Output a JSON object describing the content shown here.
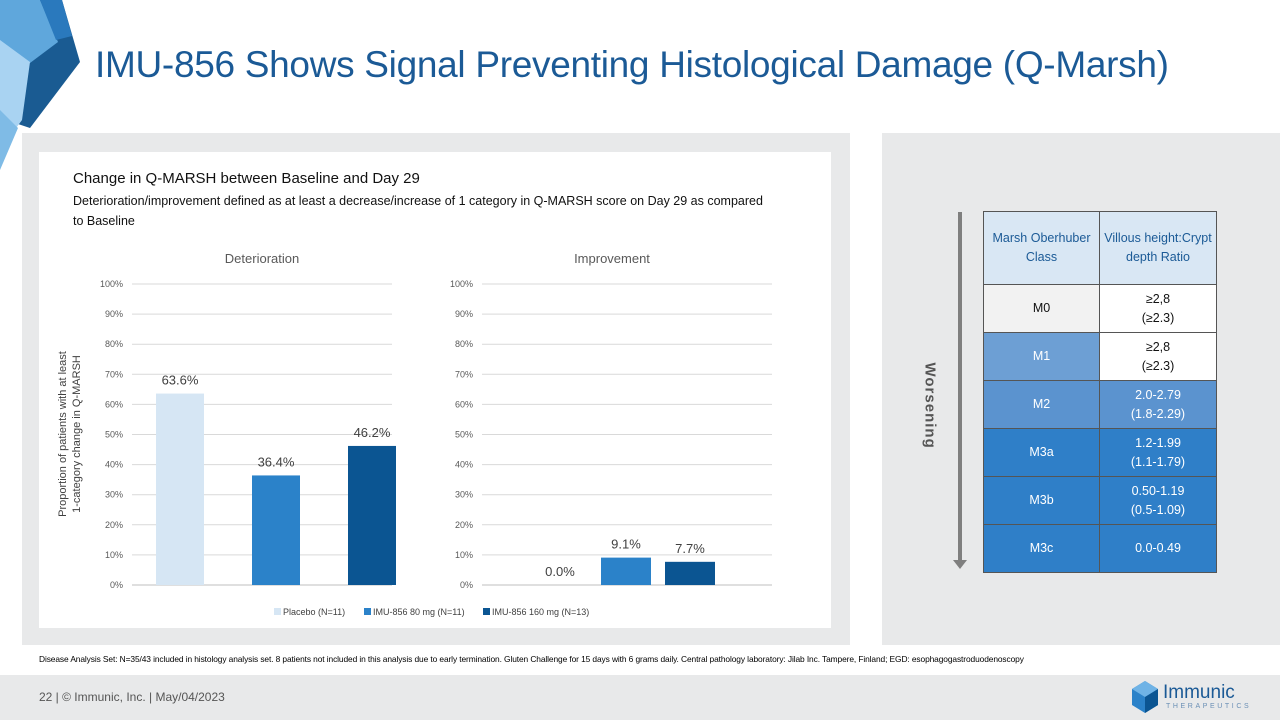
{
  "page": {
    "title": "IMU-856 Shows Signal Preventing Histological Damage (Q-Marsh)",
    "footnote": "Disease Analysis Set: N=35/43 included in histology analysis set. 8 patients not included in this analysis due to early termination. Gluten Challenge for 15 days with 6 grams daily. Central pathology laboratory: Jilab Inc. Tampere, Finland; EGD: esophagogastroduodenoscopy",
    "footer": "22  |  © Immunic, Inc.  | May/04/2023",
    "logo_name": "Immunic",
    "logo_tagline": "THERAPEUTICS"
  },
  "chart_header": {
    "title": "Change in Q-MARSH between Baseline and Day 29",
    "subtitle": "Deterioration/improvement  defined as at least a decrease/increase of 1 category in Q-MARSH score on Day 29 as compared to Baseline"
  },
  "chart_data": [
    {
      "type": "bar",
      "title": "Deterioration",
      "ylabel": "Proportion of patients with at least 1-category change in Q-MARSH",
      "ylim": [
        0,
        100
      ],
      "yticks": [
        "0%",
        "10%",
        "20%",
        "30%",
        "40%",
        "50%",
        "60%",
        "70%",
        "80%",
        "90%",
        "100%"
      ],
      "categories": [
        "Placebo (N=11)",
        "IMU-856 80 mg (N=11)",
        "IMU-856 160 mg (N=13)"
      ],
      "values": [
        63.6,
        36.4,
        46.2
      ],
      "labels": [
        "63.6%",
        "36.4%",
        "46.2%"
      ],
      "colors": [
        "#d6e6f4",
        "#2b82c9",
        "#0b5592"
      ],
      "grid": true
    },
    {
      "type": "bar",
      "title": "Improvement",
      "ylabel": "",
      "ylim": [
        0,
        100
      ],
      "yticks": [
        "0%",
        "10%",
        "20%",
        "30%",
        "40%",
        "50%",
        "60%",
        "70%",
        "80%",
        "90%",
        "100%"
      ],
      "categories": [
        "Placebo (N=11)",
        "IMU-856 80 mg (N=11)",
        "IMU-856 160 mg (N=13)"
      ],
      "values": [
        0.0,
        9.1,
        7.7
      ],
      "labels": [
        "0.0%",
        "9.1%",
        "7.7%"
      ],
      "colors": [
        "#d6e6f4",
        "#2b82c9",
        "#0b5592"
      ],
      "grid": true
    }
  ],
  "legend": {
    "placement": "bottom",
    "items": [
      {
        "label": "Placebo (N=11)",
        "color": "#d6e6f4"
      },
      {
        "label": "IMU-856 80 mg (N=11)",
        "color": "#2b82c9"
      },
      {
        "label": "IMU-856 160 mg (N=13)",
        "color": "#0b5592"
      }
    ]
  },
  "marsh_table": {
    "arrow_label": "Worsening",
    "headers": [
      "Marsh Oberhuber Class",
      "Villous height:Crypt depth Ratio"
    ],
    "rows": [
      {
        "cls": "M0",
        "ratio_line1": "≥2,8",
        "ratio_line2": "(≥2.3)",
        "cls_bg": "#f2f2f2",
        "cls_color": "#111111",
        "ratio_bg": "#ffffff",
        "ratio_color": "#111111"
      },
      {
        "cls": "M1",
        "ratio_line1": "≥2,8",
        "ratio_line2": "(≥2.3)",
        "cls_bg": "#6d9fd4",
        "cls_color": "#ffffff",
        "ratio_bg": "#ffffff",
        "ratio_color": "#111111"
      },
      {
        "cls": "M2",
        "ratio_line1": "2.0-2.79",
        "ratio_line2": "(1.8-2.29)",
        "cls_bg": "#5b93cf",
        "cls_color": "#ffffff",
        "ratio_bg": "#5b93cf",
        "ratio_color": "#ffffff"
      },
      {
        "cls": "M3a",
        "ratio_line1": "1.2-1.99",
        "ratio_line2": "(1.1-1.79)",
        "cls_bg": "#2f7fc8",
        "cls_color": "#ffffff",
        "ratio_bg": "#2f7fc8",
        "ratio_color": "#ffffff"
      },
      {
        "cls": "M3b",
        "ratio_line1": "0.50-1.19",
        "ratio_line2": "(0.5-1.09)",
        "cls_bg": "#2f7fc8",
        "cls_color": "#ffffff",
        "ratio_bg": "#2f7fc8",
        "ratio_color": "#ffffff"
      },
      {
        "cls": "M3c",
        "ratio_line1": "0.0-0.49",
        "ratio_line2": "",
        "cls_bg": "#2f7fc8",
        "cls_color": "#ffffff",
        "ratio_bg": "#2f7fc8",
        "ratio_color": "#ffffff"
      }
    ]
  }
}
